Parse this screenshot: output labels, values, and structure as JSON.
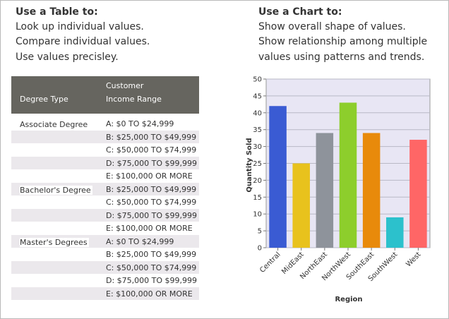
{
  "left": {
    "heading": "Use a Table to:",
    "lines": [
      "Look up individual values.",
      "Compare individual values.",
      "Use values precisley."
    ]
  },
  "right": {
    "heading": "Use a Chart to:",
    "lines": [
      "Show overall shape of values.",
      "Show relationship among multiple",
      "values using patterns and trends."
    ]
  },
  "table": {
    "headers": {
      "degree": "Degree Type",
      "income_line1": "Customer",
      "income_line2": "Income Range"
    },
    "rows": [
      {
        "degree": "Associate Degree",
        "income": "A: $0 TO $24,999"
      },
      {
        "degree": "",
        "income": "B: $25,000 TO $49,999"
      },
      {
        "degree": "",
        "income": "C: $50,000 TO $74,999"
      },
      {
        "degree": "",
        "income": "D: $75,000 TO $99,999"
      },
      {
        "degree": "",
        "income": "E: $100,000 OR MORE"
      },
      {
        "degree": "Bachelor's Degree",
        "income": "B: $25,000 TO $49,999"
      },
      {
        "degree": "",
        "income": "C: $50,000 TO $74,999"
      },
      {
        "degree": "",
        "income": "D: $75,000 TO $99,999"
      },
      {
        "degree": "",
        "income": "E: $100,000 OR MORE"
      },
      {
        "degree": "Master's Degrees",
        "income": "A: $0 TO $24,999"
      },
      {
        "degree": "",
        "income": "B: $25,000 TO $49,999"
      },
      {
        "degree": "",
        "income": "C: $50,000 TO $74,999"
      },
      {
        "degree": "",
        "income": "D: $75,000 TO $99,999"
      },
      {
        "degree": "",
        "income": "E: $100,000 OR MORE"
      }
    ]
  },
  "chart_data": {
    "type": "bar",
    "categories": [
      "Central",
      "MidEast",
      "NorthEast",
      "NorthWest",
      "SouthEast",
      "SouthWest",
      "West"
    ],
    "values": [
      42,
      25,
      34,
      43,
      34,
      9,
      32
    ],
    "colors": [
      "#3a5bd3",
      "#e8c21d",
      "#8e939b",
      "#8dce2c",
      "#e88a0b",
      "#2cc1cc",
      "#ff6666"
    ],
    "xlabel": "Region",
    "ylabel": "Quantity Sold",
    "ylim": [
      0,
      50
    ],
    "yticks": [
      0,
      5,
      10,
      15,
      20,
      25,
      30,
      35,
      40,
      45,
      50
    ],
    "grid": true,
    "plot_background": "#e8e6f4"
  }
}
